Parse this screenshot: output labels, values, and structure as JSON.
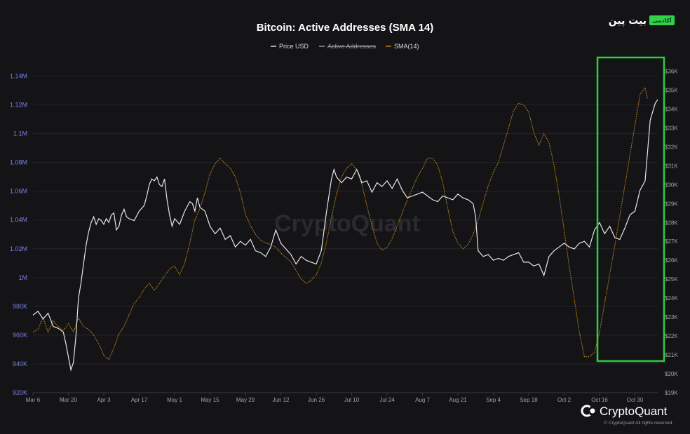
{
  "logo": {
    "main": "بیت پین",
    "badge": "آکادمی"
  },
  "brand": {
    "name": "CryptoQuant",
    "copyright": "© CryptoQuant All rights reserved.",
    "watermark": "CryptoQuant"
  },
  "colors": {
    "price": "#e6e6ea",
    "sma": "#c3871e",
    "highlight": "#2ecc40",
    "grid": "#25252b"
  },
  "chart_data": {
    "type": "line",
    "title": "Bitcoin: Active Addresses (SMA 14)",
    "legend": {
      "placement": "top-center",
      "entries": [
        {
          "name": "Price USD",
          "color": "#e6e6ea",
          "hidden": false
        },
        {
          "name": "Active Addresses",
          "color": "#9a9aa2",
          "hidden": true
        },
        {
          "name": "SMA(14)",
          "color": "#c3871e",
          "hidden": false
        }
      ]
    },
    "x_ticks": [
      "Mar 6",
      "Mar 20",
      "Apr 3",
      "Apr 17",
      "May 1",
      "May 15",
      "May 29",
      "Jun 12",
      "Jun 26",
      "Jul 10",
      "Jul 24",
      "Aug 7",
      "Aug 21",
      "Sep 4",
      "Sep 18",
      "Oct 2",
      "Oct 16",
      "Oct 30"
    ],
    "x_range_days": [
      0,
      247
    ],
    "left_axis": {
      "ticks": [
        "920K",
        "940K",
        "960K",
        "980K",
        "1M",
        "1.02M",
        "1.04M",
        "1.06M",
        "1.08M",
        "1.1M",
        "1.12M",
        "1.14M"
      ],
      "range": [
        920000,
        1150000
      ]
    },
    "right_axis": {
      "ticks": [
        "$19K",
        "$20K",
        "$21K",
        "$22K",
        "$23K",
        "$24K",
        "$25K",
        "$26K",
        "$27K",
        "$28K",
        "$29K",
        "$30K",
        "$31K",
        "$32K",
        "$33K",
        "$34K",
        "$35K",
        "$36K"
      ],
      "range": [
        19000,
        36500
      ]
    },
    "grid": true,
    "series": [
      {
        "name": "Price USD",
        "axis": "right",
        "points": [
          [
            0,
            23100
          ],
          [
            2,
            23300
          ],
          [
            4,
            22900
          ],
          [
            6,
            23200
          ],
          [
            8,
            22500
          ],
          [
            10,
            22400
          ],
          [
            12,
            22200
          ],
          [
            13,
            21600
          ],
          [
            14,
            20900
          ],
          [
            15,
            20200
          ],
          [
            16,
            20600
          ],
          [
            17,
            22000
          ],
          [
            18,
            24000
          ],
          [
            19,
            24800
          ],
          [
            20,
            25800
          ],
          [
            21,
            26800
          ],
          [
            22,
            27500
          ],
          [
            23,
            28000
          ],
          [
            24,
            28300
          ],
          [
            25,
            27900
          ],
          [
            26,
            28200
          ],
          [
            27,
            28100
          ],
          [
            28,
            27900
          ],
          [
            29,
            28200
          ],
          [
            30,
            28000
          ],
          [
            31,
            28400
          ],
          [
            32,
            28500
          ],
          [
            33,
            27600
          ],
          [
            34,
            27800
          ],
          [
            35,
            28400
          ],
          [
            36,
            28700
          ],
          [
            37,
            28300
          ],
          [
            38,
            28200
          ],
          [
            40,
            28100
          ],
          [
            42,
            28600
          ],
          [
            44,
            28900
          ],
          [
            45,
            29400
          ],
          [
            46,
            30000
          ],
          [
            47,
            30300
          ],
          [
            48,
            30200
          ],
          [
            49,
            30400
          ],
          [
            50,
            30000
          ],
          [
            51,
            29900
          ],
          [
            52,
            30300
          ],
          [
            53,
            29200
          ],
          [
            54,
            28400
          ],
          [
            55,
            27800
          ],
          [
            56,
            28200
          ],
          [
            58,
            27900
          ],
          [
            60,
            28600
          ],
          [
            62,
            29100
          ],
          [
            63,
            29000
          ],
          [
            64,
            28600
          ],
          [
            65,
            29300
          ],
          [
            66,
            28800
          ],
          [
            68,
            28600
          ],
          [
            69,
            28200
          ],
          [
            70,
            27800
          ],
          [
            72,
            27400
          ],
          [
            74,
            27700
          ],
          [
            76,
            27100
          ],
          [
            78,
            27300
          ],
          [
            80,
            26700
          ],
          [
            82,
            27000
          ],
          [
            84,
            26800
          ],
          [
            86,
            27100
          ],
          [
            88,
            26500
          ],
          [
            90,
            26400
          ],
          [
            92,
            26200
          ],
          [
            94,
            26700
          ],
          [
            96,
            27600
          ],
          [
            98,
            26900
          ],
          [
            100,
            26600
          ],
          [
            102,
            26300
          ],
          [
            104,
            25800
          ],
          [
            106,
            26200
          ],
          [
            108,
            26000
          ],
          [
            110,
            25900
          ],
          [
            112,
            25800
          ],
          [
            114,
            26500
          ],
          [
            116,
            28500
          ],
          [
            118,
            30300
          ],
          [
            119,
            30800
          ],
          [
            120,
            30400
          ],
          [
            122,
            30100
          ],
          [
            124,
            30400
          ],
          [
            126,
            30300
          ],
          [
            128,
            30800
          ],
          [
            129,
            30500
          ],
          [
            130,
            30100
          ],
          [
            132,
            30200
          ],
          [
            134,
            29600
          ],
          [
            136,
            30100
          ],
          [
            138,
            29900
          ],
          [
            140,
            30200
          ],
          [
            142,
            29800
          ],
          [
            144,
            30300
          ],
          [
            146,
            29700
          ],
          [
            148,
            29300
          ],
          [
            150,
            29400
          ],
          [
            152,
            29500
          ],
          [
            154,
            29600
          ],
          [
            156,
            29400
          ],
          [
            158,
            29200
          ],
          [
            160,
            29100
          ],
          [
            162,
            29400
          ],
          [
            164,
            29300
          ],
          [
            166,
            29200
          ],
          [
            168,
            29500
          ],
          [
            170,
            29300
          ],
          [
            172,
            29200
          ],
          [
            174,
            29000
          ],
          [
            175,
            28300
          ],
          [
            176,
            26500
          ],
          [
            178,
            26200
          ],
          [
            180,
            26300
          ],
          [
            182,
            26000
          ],
          [
            184,
            26100
          ],
          [
            186,
            26000
          ],
          [
            188,
            26200
          ],
          [
            190,
            26300
          ],
          [
            192,
            26400
          ],
          [
            194,
            25900
          ],
          [
            196,
            25900
          ],
          [
            198,
            25700
          ],
          [
            200,
            25800
          ],
          [
            202,
            25200
          ],
          [
            204,
            26200
          ],
          [
            206,
            26500
          ],
          [
            208,
            26700
          ],
          [
            210,
            26900
          ],
          [
            212,
            26700
          ],
          [
            214,
            26600
          ],
          [
            216,
            26900
          ],
          [
            218,
            27000
          ],
          [
            220,
            26700
          ],
          [
            222,
            27600
          ],
          [
            224,
            28000
          ],
          [
            226,
            27400
          ],
          [
            228,
            27800
          ],
          [
            230,
            27200
          ],
          [
            232,
            27100
          ],
          [
            234,
            27700
          ],
          [
            236,
            28400
          ],
          [
            238,
            28600
          ],
          [
            240,
            29700
          ],
          [
            242,
            30200
          ],
          [
            243,
            31800
          ],
          [
            244,
            33400
          ],
          [
            246,
            34300
          ],
          [
            247,
            34500
          ]
        ]
      },
      {
        "name": "SMA(14)",
        "axis": "left",
        "points": [
          [
            0,
            962000
          ],
          [
            2,
            964000
          ],
          [
            4,
            972000
          ],
          [
            6,
            962000
          ],
          [
            8,
            970000
          ],
          [
            10,
            966000
          ],
          [
            12,
            963000
          ],
          [
            14,
            968000
          ],
          [
            16,
            962000
          ],
          [
            18,
            972000
          ],
          [
            20,
            966000
          ],
          [
            22,
            964000
          ],
          [
            24,
            960000
          ],
          [
            26,
            954000
          ],
          [
            28,
            946000
          ],
          [
            30,
            943000
          ],
          [
            32,
            951000
          ],
          [
            34,
            961000
          ],
          [
            36,
            966000
          ],
          [
            38,
            974000
          ],
          [
            40,
            982000
          ],
          [
            42,
            986000
          ],
          [
            44,
            992000
          ],
          [
            46,
            996000
          ],
          [
            48,
            991000
          ],
          [
            50,
            996000
          ],
          [
            52,
            1001000
          ],
          [
            54,
            1006000
          ],
          [
            56,
            1008000
          ],
          [
            58,
            1002000
          ],
          [
            60,
            1010000
          ],
          [
            62,
            1024000
          ],
          [
            64,
            1040000
          ],
          [
            66,
            1048000
          ],
          [
            68,
            1059000
          ],
          [
            70,
            1072000
          ],
          [
            72,
            1079000
          ],
          [
            74,
            1083000
          ],
          [
            76,
            1079000
          ],
          [
            78,
            1076000
          ],
          [
            80,
            1070000
          ],
          [
            82,
            1059000
          ],
          [
            84,
            1044000
          ],
          [
            86,
            1036000
          ],
          [
            88,
            1030000
          ],
          [
            90,
            1026000
          ],
          [
            92,
            1024000
          ],
          [
            94,
            1023000
          ],
          [
            96,
            1021000
          ],
          [
            98,
            1017000
          ],
          [
            100,
            1014000
          ],
          [
            102,
            1011000
          ],
          [
            104,
            1005000
          ],
          [
            106,
            999000
          ],
          [
            108,
            996000
          ],
          [
            110,
            998000
          ],
          [
            112,
            1002000
          ],
          [
            114,
            1010000
          ],
          [
            116,
            1024000
          ],
          [
            118,
            1042000
          ],
          [
            120,
            1058000
          ],
          [
            122,
            1070000
          ],
          [
            124,
            1076000
          ],
          [
            126,
            1079000
          ],
          [
            128,
            1075000
          ],
          [
            130,
            1065000
          ],
          [
            132,
            1050000
          ],
          [
            134,
            1036000
          ],
          [
            136,
            1024000
          ],
          [
            138,
            1019000
          ],
          [
            140,
            1021000
          ],
          [
            142,
            1027000
          ],
          [
            144,
            1036000
          ],
          [
            146,
            1045000
          ],
          [
            148,
            1054000
          ],
          [
            150,
            1062000
          ],
          [
            152,
            1070000
          ],
          [
            154,
            1076000
          ],
          [
            156,
            1083000
          ],
          [
            158,
            1083000
          ],
          [
            160,
            1078000
          ],
          [
            162,
            1066000
          ],
          [
            164,
            1048000
          ],
          [
            166,
            1032000
          ],
          [
            168,
            1024000
          ],
          [
            170,
            1020000
          ],
          [
            172,
            1023000
          ],
          [
            174,
            1030000
          ],
          [
            176,
            1040000
          ],
          [
            178,
            1052000
          ],
          [
            180,
            1064000
          ],
          [
            182,
            1073000
          ],
          [
            184,
            1080000
          ],
          [
            186,
            1092000
          ],
          [
            188,
            1104000
          ],
          [
            190,
            1116000
          ],
          [
            192,
            1121000
          ],
          [
            194,
            1120000
          ],
          [
            196,
            1115000
          ],
          [
            198,
            1101000
          ],
          [
            200,
            1092000
          ],
          [
            202,
            1100000
          ],
          [
            204,
            1094000
          ],
          [
            206,
            1078000
          ],
          [
            208,
            1057000
          ],
          [
            210,
            1033000
          ],
          [
            212,
            1008000
          ],
          [
            214,
            985000
          ],
          [
            216,
            962000
          ],
          [
            218,
            945000
          ],
          [
            220,
            945000
          ],
          [
            222,
            948000
          ],
          [
            224,
            962000
          ],
          [
            226,
            982000
          ],
          [
            228,
            1002000
          ],
          [
            230,
            1022000
          ],
          [
            232,
            1043000
          ],
          [
            234,
            1064000
          ],
          [
            236,
            1085000
          ],
          [
            238,
            1106000
          ],
          [
            240,
            1127000
          ],
          [
            242,
            1132000
          ],
          [
            243,
            1124000
          ]
        ]
      }
    ],
    "annotations": [
      {
        "type": "highlight-box",
        "color": "#2ecc40",
        "x_range_days": [
          224,
          247
        ],
        "description": "highlighted recent period"
      }
    ]
  }
}
